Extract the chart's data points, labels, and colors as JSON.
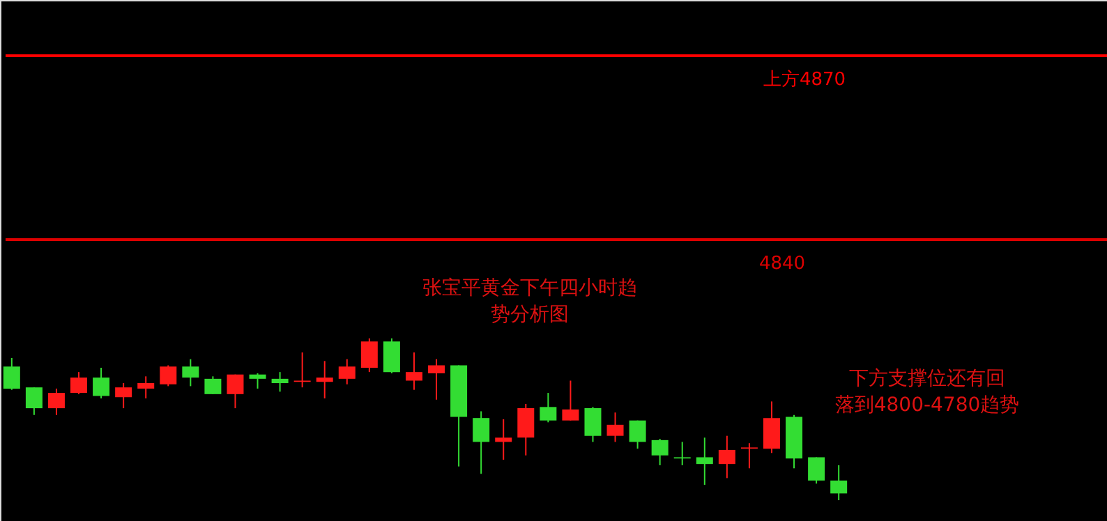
{
  "chart_data": {
    "type": "candlestick",
    "categories": [
      null,
      null,
      null,
      null,
      null,
      null,
      null,
      null,
      null,
      null,
      null,
      null,
      null,
      null,
      null,
      null,
      null,
      null,
      null,
      null,
      null,
      null,
      null,
      null,
      null,
      null,
      null,
      null,
      null,
      null,
      null,
      null,
      null,
      null,
      null,
      null,
      null,
      null
    ],
    "ohlc": [
      [
        4819.3,
        4820.7,
        4815.5,
        4815.7
      ],
      [
        4815.9,
        4815.9,
        4811.4,
        4812.5
      ],
      [
        4812.5,
        4815.7,
        4811.4,
        4815.0
      ],
      [
        4815.0,
        4818.4,
        4814.8,
        4817.5
      ],
      [
        4817.5,
        4819.1,
        4814.1,
        4814.5
      ],
      [
        4814.3,
        4816.6,
        4812.5,
        4815.9
      ],
      [
        4815.7,
        4817.7,
        4814.1,
        4816.6
      ],
      [
        4816.4,
        4819.5,
        4816.1,
        4819.3
      ],
      [
        4819.3,
        4820.5,
        4816.1,
        4817.5
      ],
      [
        4817.3,
        4817.7,
        4814.8,
        4814.8
      ],
      [
        4814.8,
        4818.0,
        4812.5,
        4818.0
      ],
      [
        4818.0,
        4818.2,
        4815.7,
        4817.3
      ],
      [
        4817.3,
        4818.4,
        4815.2,
        4816.6
      ],
      [
        4816.8,
        4821.6,
        4815.9,
        4817.0
      ],
      [
        4816.8,
        4820.2,
        4814.1,
        4817.5
      ],
      [
        4817.3,
        4820.5,
        4816.4,
        4819.3
      ],
      [
        4819.1,
        4823.9,
        4818.4,
        4823.4
      ],
      [
        4823.4,
        4823.9,
        4818.2,
        4818.4
      ],
      [
        4817.0,
        4821.6,
        4815.5,
        4818.4
      ],
      [
        4818.2,
        4820.5,
        4813.9,
        4819.5
      ],
      [
        4819.5,
        4819.5,
        4803.0,
        4811.1
      ],
      [
        4810.9,
        4812.0,
        4801.8,
        4807.0
      ],
      [
        4807.0,
        4810.7,
        4804.1,
        4807.7
      ],
      [
        4807.7,
        4813.2,
        4804.8,
        4812.5
      ],
      [
        4812.7,
        4815.0,
        4810.2,
        4810.5
      ],
      [
        4810.5,
        4817.0,
        4810.5,
        4812.3
      ],
      [
        4812.5,
        4812.7,
        4807.0,
        4808.0
      ],
      [
        4808.0,
        4811.8,
        4807.0,
        4809.8
      ],
      [
        4810.5,
        4810.5,
        4805.9,
        4807.0
      ],
      [
        4807.3,
        4807.5,
        4803.2,
        4804.8
      ],
      [
        4804.5,
        4807.0,
        4803.2,
        4804.3
      ],
      [
        4804.5,
        4807.7,
        4800.0,
        4803.4
      ],
      [
        4803.4,
        4808.0,
        4801.1,
        4805.7
      ],
      [
        4805.9,
        4806.8,
        4802.7,
        4806.1
      ],
      [
        4805.9,
        4813.6,
        4805.2,
        4810.9
      ],
      [
        4811.1,
        4811.4,
        4802.7,
        4804.3
      ],
      [
        4804.5,
        4804.5,
        4800.2,
        4800.7
      ],
      [
        4800.7,
        4803.2,
        4797.5,
        4798.6
      ]
    ],
    "colors": [
      "#33dd33",
      "#33dd33",
      "#ff1a1a",
      "#ff1a1a",
      "#33dd33",
      "#ff1a1a",
      "#ff1a1a",
      "#ff1a1a",
      "#33dd33",
      "#33dd33",
      "#ff1a1a",
      "#33dd33",
      "#33dd33",
      "#ff1a1a",
      "#ff1a1a",
      "#ff1a1a",
      "#ff1a1a",
      "#33dd33",
      "#ff1a1a",
      "#ff1a1a",
      "#33dd33",
      "#33dd33",
      "#ff1a1a",
      "#ff1a1a",
      "#33dd33",
      "#ff1a1a",
      "#33dd33",
      "#ff1a1a",
      "#33dd33",
      "#33dd33",
      "#33dd33",
      "#33dd33",
      "#ff1a1a",
      "#ff1a1a",
      "#ff1a1a",
      "#33dd33",
      "#33dd33",
      "#33dd33"
    ],
    "ylim": [
      4794.1,
      4879.1
    ],
    "tick_labels": false,
    "ref_lines": [
      {
        "axis": "y",
        "value": 4870,
        "label": "上方4870",
        "color": "#ff0000"
      },
      {
        "axis": "y",
        "value": 4840,
        "label": "4840",
        "color": "#dd0000"
      }
    ],
    "annotations": [
      "张宝平黄金下午四小时趋势分析图",
      "下方支撑位还有回落到4800-4780趋势"
    ]
  }
}
